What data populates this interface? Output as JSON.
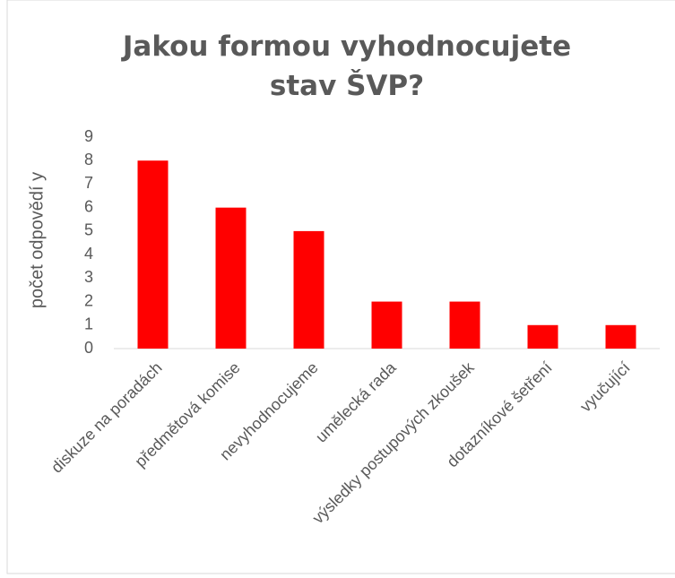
{
  "chart_data": {
    "type": "bar",
    "title": "Jakou formou vyhodnocujete  stav ŠVP?",
    "y_label": "počet odpovědí  y",
    "categories": [
      "diskuze na poradách",
      "předmětová komise",
      "nevyhodnocujeme",
      "umělecká rada",
      "výsledky postupových zkoušek",
      "dotazníkové šetření",
      "vyučující"
    ],
    "values": [
      8,
      6,
      5,
      2,
      2,
      1,
      1
    ],
    "color": "#ff0000",
    "ylim": [
      0,
      9
    ],
    "yticks": [
      0,
      1,
      2,
      3,
      4,
      5,
      6,
      7,
      8,
      9
    ],
    "grid": false
  }
}
